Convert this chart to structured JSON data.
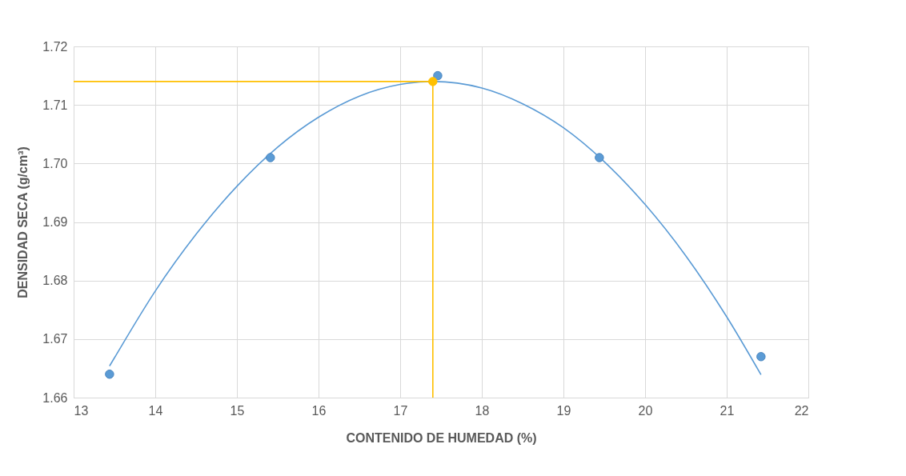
{
  "chart_data": {
    "type": "scatter",
    "xlabel": "CONTENIDO DE HUMEDAD (%)",
    "ylabel": "DENSIDAD SECA (g/cm³)",
    "xlim": [
      13,
      22
    ],
    "xticks": [
      13,
      14,
      15,
      16,
      17,
      18,
      19,
      20,
      21,
      22
    ],
    "ylim": [
      1.66,
      1.72
    ],
    "yticks": [
      {
        "value": 1.66,
        "label": "1.66"
      },
      {
        "value": 1.67,
        "label": "1.67"
      },
      {
        "value": 1.68,
        "label": "1.68"
      },
      {
        "value": 1.69,
        "label": "1.69"
      },
      {
        "value": 1.7,
        "label": "1.70"
      },
      {
        "value": 1.71,
        "label": "1.71"
      },
      {
        "value": 1.72,
        "label": "1.72"
      }
    ],
    "grid": true,
    "series": [
      {
        "type": "line",
        "color": "#5b9bd5",
        "marker": "none",
        "x": [
          13.44,
          13.5,
          14,
          14.5,
          15,
          15.5,
          16,
          16.5,
          17,
          17.4,
          18,
          18.5,
          19,
          19.5,
          20,
          20.5,
          21,
          21.42
        ],
        "values": [
          1.6654,
          1.6668,
          1.6782,
          1.6879,
          1.6961,
          1.7028,
          1.7079,
          1.7115,
          1.7135,
          1.714,
          1.7129,
          1.7102,
          1.7061,
          1.7003,
          1.693,
          1.6842,
          1.6738,
          1.6639
        ]
      },
      {
        "type": "line",
        "color": "#ffc000",
        "marker": "none",
        "x": [
          13,
          17.4,
          17.4
        ],
        "values": [
          1.714,
          1.714,
          1.66
        ]
      },
      {
        "color": "#5b9bd5",
        "marker": "circle",
        "x": [
          13.44,
          15.41,
          17.46,
          19.44,
          21.42
        ],
        "values": [
          1.664,
          1.701,
          1.715,
          1.701,
          1.667
        ]
      },
      {
        "color": "#ffc000",
        "marker": "circle",
        "x": [
          17.4
        ],
        "values": [
          1.714
        ]
      }
    ]
  }
}
